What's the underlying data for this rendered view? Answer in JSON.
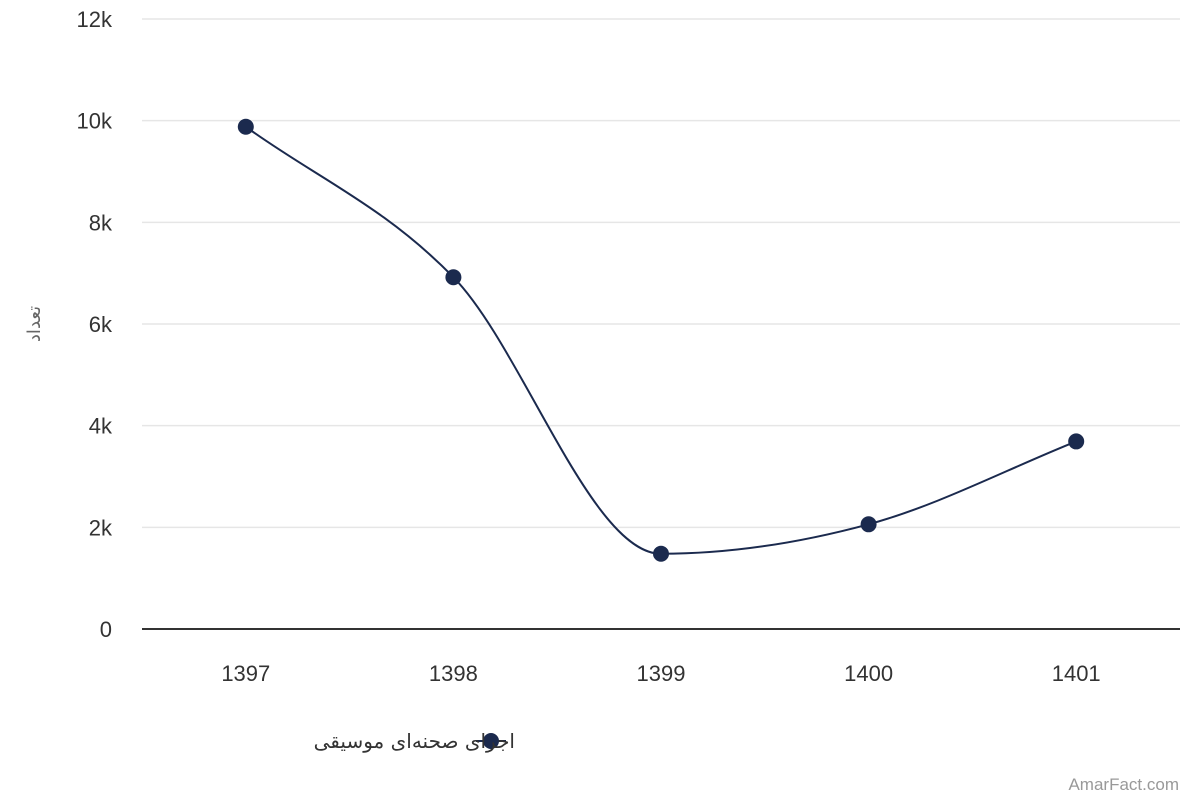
{
  "chart_data": {
    "type": "line",
    "smooth": true,
    "categories": [
      "1397",
      "1398",
      "1399",
      "1400",
      "1401"
    ],
    "series": [
      {
        "name": "اجرای صحنه‌ای موسیقی",
        "values": [
          9880,
          6920,
          1480,
          2060,
          3690
        ],
        "color": "#1b2a4e"
      }
    ],
    "xlabel": "",
    "ylabel": "تعداد",
    "ylim": [
      0,
      12000
    ],
    "yticks": [
      0,
      2000,
      4000,
      6000,
      8000,
      10000,
      12000
    ],
    "ytick_labels": [
      "0",
      "2k",
      "4k",
      "6k",
      "8k",
      "10k",
      "12k"
    ],
    "grid": true,
    "legend_position": "bottom-center"
  },
  "credit": "AmarFact.com",
  "colors": {
    "series": "#1b2a4e",
    "grid": "#e6e6e6",
    "axis": "#333333"
  }
}
